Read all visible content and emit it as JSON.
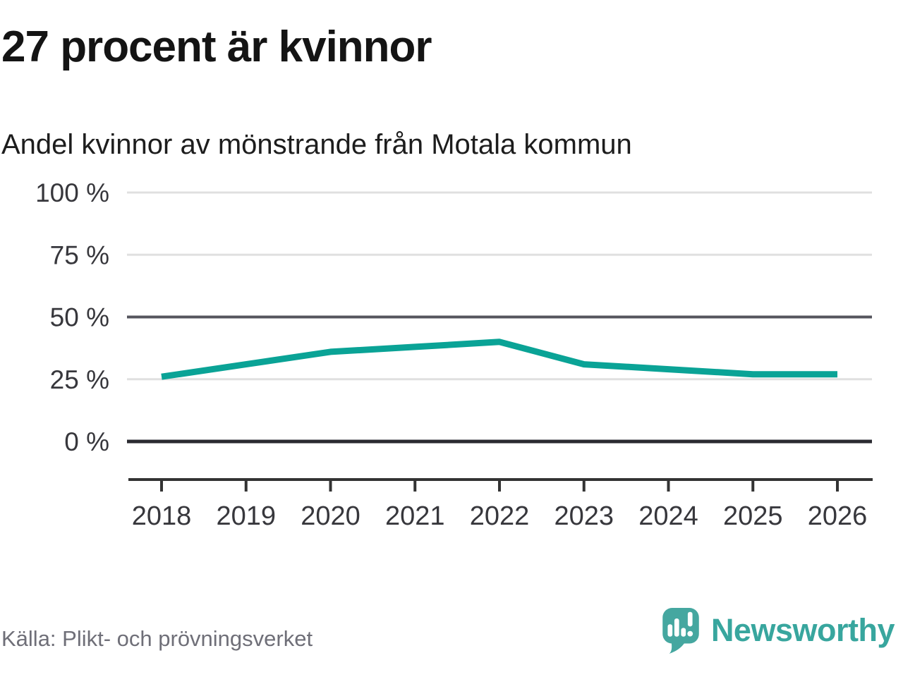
{
  "header": {
    "title": "27 procent är kvinnor",
    "subtitle": "Andel kvinnor av mönstrande från Motala kommun"
  },
  "footer": {
    "source": "Källa: Plikt- och prövningsverket",
    "brand": "Newsworthy"
  },
  "colors": {
    "line": "#0aa396",
    "brand_teal": "#3aa69e",
    "icon_teal": "#45a7a0",
    "grid_light": "#e0e0e0",
    "grid_mid": "#55555d",
    "grid_zero": "#2a2a30",
    "axis": "#333333",
    "tick_text": "#37373c",
    "title_text": "#141414",
    "source_text": "#6f6f78"
  },
  "chart_data": {
    "type": "line",
    "title": "27 procent är kvinnor",
    "subtitle": "Andel kvinnor av mönstrande från Motala kommun",
    "categories": [
      "2018",
      "2019",
      "2020",
      "2021",
      "2022",
      "2023",
      "2024",
      "2025",
      "2026"
    ],
    "series": [
      {
        "name": "Andel kvinnor av mönstrande",
        "values": [
          26,
          31,
          36,
          38,
          40,
          31,
          29,
          27,
          27
        ]
      }
    ],
    "unit": "%",
    "ylim": [
      0,
      100
    ],
    "y_ticks": [
      {
        "value": 100,
        "label": "100 %"
      },
      {
        "value": 75,
        "label": "75 %"
      },
      {
        "value": 50,
        "label": "50 %"
      },
      {
        "value": 25,
        "label": "25 %"
      },
      {
        "value": 0,
        "label": "0 %"
      }
    ],
    "grid": "horizontal",
    "legend": "none"
  }
}
